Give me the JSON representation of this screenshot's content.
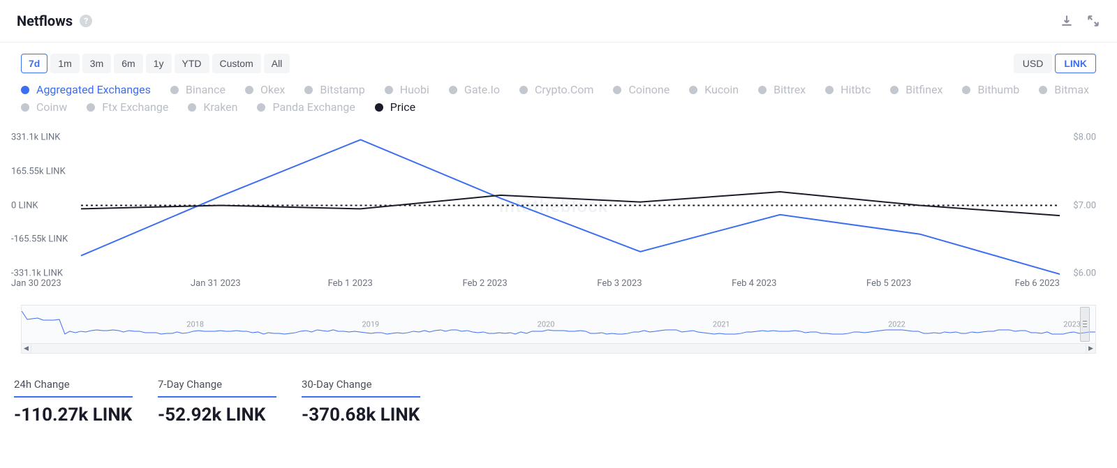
{
  "header": {
    "title": "Netflows"
  },
  "ranges": [
    "7d",
    "1m",
    "3m",
    "6m",
    "1y",
    "YTD",
    "Custom",
    "All"
  ],
  "active_range": "7d",
  "units": [
    "USD",
    "LINK"
  ],
  "active_unit": "LINK",
  "legend": [
    {
      "label": "Aggregated Exchanges",
      "color": "#3b6ef0",
      "active": true
    },
    {
      "label": "Binance",
      "color": "#c3c8d0",
      "active": false
    },
    {
      "label": "Okex",
      "color": "#c3c8d0",
      "active": false
    },
    {
      "label": "Bitstamp",
      "color": "#c3c8d0",
      "active": false
    },
    {
      "label": "Huobi",
      "color": "#c3c8d0",
      "active": false
    },
    {
      "label": "Gate.Io",
      "color": "#c3c8d0",
      "active": false
    },
    {
      "label": "Crypto.Com",
      "color": "#c3c8d0",
      "active": false
    },
    {
      "label": "Coinone",
      "color": "#c3c8d0",
      "active": false
    },
    {
      "label": "Kucoin",
      "color": "#c3c8d0",
      "active": false
    },
    {
      "label": "Bittrex",
      "color": "#c3c8d0",
      "active": false
    },
    {
      "label": "Hitbtc",
      "color": "#c3c8d0",
      "active": false
    },
    {
      "label": "Bitfinex",
      "color": "#c3c8d0",
      "active": false
    },
    {
      "label": "Bithumb",
      "color": "#c3c8d0",
      "active": false
    },
    {
      "label": "Bitmax",
      "color": "#c3c8d0",
      "active": false
    },
    {
      "label": "Coinw",
      "color": "#c3c8d0",
      "active": false
    },
    {
      "label": "Ftx Exchange",
      "color": "#c3c8d0",
      "active": false
    },
    {
      "label": "Kraken",
      "color": "#c3c8d0",
      "active": false
    },
    {
      "label": "Panda Exchange",
      "color": "#c3c8d0",
      "active": false
    },
    {
      "label": "Price",
      "color": "#1a1d29",
      "active": true
    }
  ],
  "chart": {
    "type": "line",
    "x_categories": [
      "Jan 30 2023",
      "Jan 31 2023",
      "Feb 1 2023",
      "Feb 2 2023",
      "Feb 3 2023",
      "Feb 4 2023",
      "Feb 5 2023",
      "Feb 6 2023"
    ],
    "y_left_ticks": [
      "331.1k LINK",
      "165.55k LINK",
      "0 LINK",
      "-165.55k LINK",
      "-331.1k LINK"
    ],
    "y_left_min": -331100,
    "y_left_max": 331100,
    "y_right_ticks": [
      "$8.00",
      "$7.00",
      "$6.00"
    ],
    "y_right_min": 6.0,
    "y_right_max": 8.0,
    "series_netflow": {
      "color": "#3b6ef0",
      "line_width": 2,
      "values": [
        -245000,
        45000,
        320000,
        35000,
        -225000,
        -45000,
        -140000,
        -335000
      ]
    },
    "series_price": {
      "color": "#1a1d29",
      "line_width": 2,
      "values": [
        6.95,
        7.0,
        6.95,
        7.15,
        7.05,
        7.2,
        7.0,
        6.85
      ]
    },
    "zero_line_color": "#1a1d29",
    "background_color": "#ffffff",
    "watermark_text": "intotheblock"
  },
  "navigator": {
    "years": [
      "2018",
      "2019",
      "2020",
      "2021",
      "2022",
      "2023"
    ],
    "line_color": "#3b6ef0"
  },
  "stats": [
    {
      "label": "24h Change",
      "value": "-110.27k LINK"
    },
    {
      "label": "7-Day Change",
      "value": "-52.92k LINK"
    },
    {
      "label": "30-Day Change",
      "value": "-370.68k LINK"
    }
  ]
}
